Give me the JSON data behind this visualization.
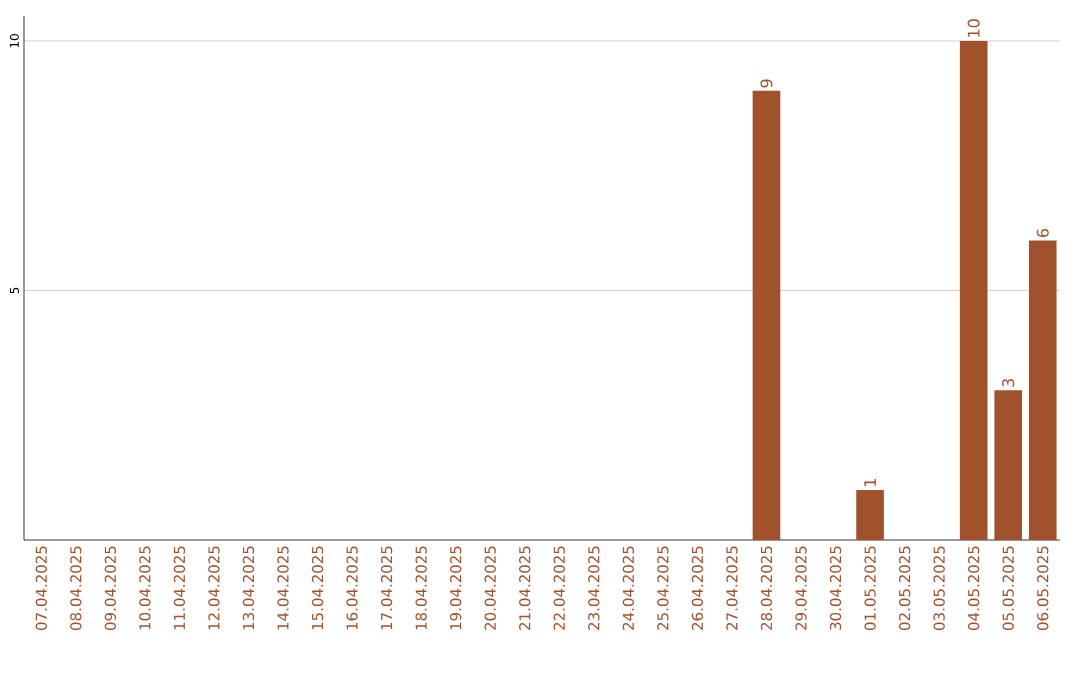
{
  "chart_data": {
    "type": "bar",
    "categories": [
      "07.04.2025",
      "08.04.2025",
      "09.04.2025",
      "10.04.2025",
      "11.04.2025",
      "12.04.2025",
      "13.04.2025",
      "14.04.2025",
      "15.04.2025",
      "16.04.2025",
      "17.04.2025",
      "18.04.2025",
      "19.04.2025",
      "20.04.2025",
      "21.04.2025",
      "22.04.2025",
      "23.04.2025",
      "24.04.2025",
      "25.04.2025",
      "26.04.2025",
      "27.04.2025",
      "28.04.2025",
      "29.04.2025",
      "30.04.2025",
      "01.05.2025",
      "02.05.2025",
      "03.05.2025",
      "04.05.2025",
      "05.05.2025",
      "06.05.2025"
    ],
    "values": [
      0,
      0,
      0,
      0,
      0,
      0,
      0,
      0,
      0,
      0,
      0,
      0,
      0,
      0,
      0,
      0,
      0,
      0,
      0,
      0,
      0,
      9,
      0,
      0,
      1,
      0,
      0,
      10,
      3,
      6
    ],
    "value_labels": [
      null,
      null,
      null,
      null,
      null,
      null,
      null,
      null,
      null,
      null,
      null,
      null,
      null,
      null,
      null,
      null,
      null,
      null,
      null,
      null,
      null,
      "9",
      null,
      null,
      "1",
      null,
      null,
      "10",
      "3",
      "6"
    ],
    "color": "#a0522d",
    "ylim": [
      0,
      10.5
    ],
    "yticks": [
      5,
      10
    ],
    "grid": "y"
  }
}
